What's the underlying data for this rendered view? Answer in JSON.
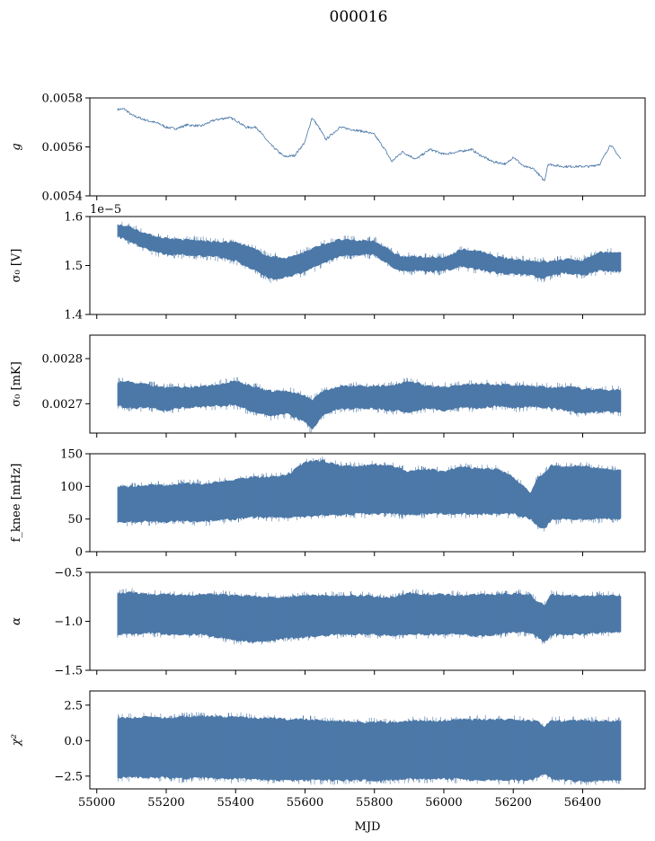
{
  "figure": {
    "title": "000016",
    "xlabel": "MJD",
    "x_ticks": [
      55000,
      55200,
      55400,
      55600,
      55800,
      56000,
      56200,
      56400
    ],
    "xlim": [
      54980,
      56580
    ],
    "series_color": "#4c78a8"
  },
  "chart_data": [
    {
      "type": "line",
      "ylabel": "g",
      "ylim": [
        0.0054,
        0.0058
      ],
      "y_ticks": [
        0.0054,
        0.0056,
        0.0058
      ],
      "y_tick_labels": [
        "0.0054",
        "0.0056",
        "0.0058"
      ],
      "offset_text": "",
      "style": "line",
      "x": [
        55060,
        55080,
        55100,
        55140,
        55180,
        55200,
        55230,
        55260,
        55300,
        55340,
        55380,
        55400,
        55430,
        55460,
        55500,
        55540,
        55570,
        55600,
        55620,
        55640,
        55660,
        55700,
        55740,
        55780,
        55800,
        55830,
        55850,
        55880,
        55920,
        55960,
        56000,
        56040,
        56080,
        56100,
        56140,
        56180,
        56200,
        56230,
        56260,
        56290,
        56300,
        56340,
        56380,
        56420,
        56450,
        56480,
        56510
      ],
      "y": [
        0.005753,
        0.005755,
        0.00573,
        0.00571,
        0.005695,
        0.00568,
        0.005675,
        0.00569,
        0.005685,
        0.00571,
        0.00572,
        0.00571,
        0.00568,
        0.00568,
        0.00561,
        0.00556,
        0.005565,
        0.00562,
        0.00572,
        0.00568,
        0.00563,
        0.00568,
        0.00567,
        0.00566,
        0.00565,
        0.00559,
        0.00554,
        0.00558,
        0.00555,
        0.00559,
        0.00557,
        0.00558,
        0.00559,
        0.00557,
        0.00554,
        0.00553,
        0.00556,
        0.00552,
        0.00551,
        0.00546,
        0.00553,
        0.00552,
        0.00552,
        0.00552,
        0.00553,
        0.00561,
        0.00555
      ]
    },
    {
      "type": "area",
      "ylabel": "σ₀ [V]",
      "ylim": [
        1.4,
        1.6
      ],
      "y_ticks": [
        1.4,
        1.5,
        1.6
      ],
      "y_tick_labels": [
        "1.4",
        "1.5",
        "1.6"
      ],
      "offset_text": "1e−5",
      "style": "band",
      "x": [
        55060,
        55100,
        55150,
        55200,
        55250,
        55300,
        55350,
        55400,
        55450,
        55500,
        55550,
        55600,
        55650,
        55700,
        55750,
        55800,
        55850,
        55880,
        55920,
        55960,
        56000,
        56050,
        56100,
        56150,
        56200,
        56250,
        56280,
        56300,
        56350,
        56400,
        56450,
        56510
      ],
      "lower": [
        1.562,
        1.55,
        1.535,
        1.525,
        1.525,
        1.522,
        1.52,
        1.512,
        1.495,
        1.475,
        1.48,
        1.49,
        1.507,
        1.522,
        1.525,
        1.525,
        1.5,
        1.492,
        1.492,
        1.49,
        1.492,
        1.5,
        1.495,
        1.488,
        1.485,
        1.483,
        1.475,
        1.48,
        1.488,
        1.483,
        1.492,
        1.49
      ],
      "upper": [
        1.582,
        1.575,
        1.56,
        1.553,
        1.55,
        1.548,
        1.545,
        1.545,
        1.532,
        1.515,
        1.513,
        1.525,
        1.54,
        1.55,
        1.548,
        1.548,
        1.525,
        1.515,
        1.515,
        1.514,
        1.513,
        1.53,
        1.527,
        1.515,
        1.51,
        1.507,
        1.505,
        1.505,
        1.51,
        1.508,
        1.525,
        1.522
      ]
    },
    {
      "type": "area",
      "ylabel": "σ₀ [mK]",
      "ylim": [
        0.002635,
        0.002852
      ],
      "y_ticks": [
        0.0027,
        0.0028
      ],
      "y_tick_labels": [
        "0.0027",
        "0.0028"
      ],
      "offset_text": "",
      "style": "band",
      "x": [
        55060,
        55100,
        55150,
        55200,
        55250,
        55300,
        55350,
        55400,
        55450,
        55500,
        55550,
        55600,
        55620,
        55650,
        55700,
        55750,
        55800,
        55850,
        55900,
        55950,
        56000,
        56050,
        56100,
        56150,
        56200,
        56250,
        56280,
        56300,
        56350,
        56400,
        56450,
        56510
      ],
      "lower": [
        0.002698,
        0.002693,
        0.002695,
        0.002688,
        0.002695,
        0.002696,
        0.002698,
        0.0027,
        0.002685,
        0.002675,
        0.00268,
        0.002662,
        0.002645,
        0.002678,
        0.002692,
        0.002693,
        0.002693,
        0.002688,
        0.002685,
        0.002693,
        0.002688,
        0.002695,
        0.002693,
        0.002698,
        0.002693,
        0.002696,
        0.002695,
        0.002695,
        0.002688,
        0.002682,
        0.002685,
        0.002685
      ],
      "upper": [
        0.002745,
        0.002745,
        0.002738,
        0.002733,
        0.002733,
        0.002735,
        0.00274,
        0.002748,
        0.002735,
        0.002725,
        0.002725,
        0.002715,
        0.002705,
        0.002725,
        0.002735,
        0.002737,
        0.002735,
        0.002738,
        0.002748,
        0.002737,
        0.002735,
        0.002738,
        0.002742,
        0.00274,
        0.002738,
        0.002736,
        0.002735,
        0.002733,
        0.002735,
        0.00273,
        0.002728,
        0.002728
      ]
    },
    {
      "type": "area",
      "ylabel": "f_knee [mHz]",
      "ylim": [
        0,
        150
      ],
      "y_ticks": [
        0,
        50,
        100,
        150
      ],
      "y_tick_labels": [
        "0",
        "50",
        "100",
        "150"
      ],
      "offset_text": "",
      "style": "band",
      "x": [
        55060,
        55100,
        55150,
        55200,
        55250,
        55300,
        55350,
        55400,
        55450,
        55500,
        55550,
        55600,
        55650,
        55700,
        55750,
        55800,
        55850,
        55900,
        55950,
        56000,
        56050,
        56100,
        56150,
        56200,
        56250,
        56270,
        56290,
        56310,
        56350,
        56400,
        56450,
        56510
      ],
      "lower": [
        48,
        48,
        48,
        48,
        50,
        48,
        50,
        52,
        55,
        55,
        55,
        55,
        58,
        58,
        60,
        60,
        60,
        58,
        60,
        60,
        60,
        60,
        60,
        60,
        52,
        42,
        38,
        50,
        52,
        52,
        52,
        52
      ],
      "upper": [
        98,
        98,
        100,
        100,
        102,
        102,
        105,
        108,
        112,
        112,
        115,
        135,
        138,
        130,
        128,
        132,
        130,
        120,
        125,
        120,
        128,
        125,
        125,
        112,
        88,
        110,
        118,
        130,
        128,
        130,
        125,
        122
      ]
    },
    {
      "type": "area",
      "ylabel": "α",
      "ylim": [
        -1.5,
        -0.5
      ],
      "y_ticks": [
        -1.5,
        -1.0,
        -0.5
      ],
      "y_tick_labels": [
        "−1.5",
        "−1.0",
        "−0.5"
      ],
      "offset_text": "",
      "style": "band",
      "x": [
        55060,
        55100,
        55150,
        55200,
        55250,
        55300,
        55350,
        55400,
        55450,
        55500,
        55550,
        55600,
        55650,
        55700,
        55750,
        55800,
        55850,
        55900,
        55950,
        56000,
        56050,
        56100,
        56150,
        56200,
        56250,
        56270,
        56290,
        56310,
        56350,
        56400,
        56450,
        56510
      ],
      "lower": [
        -1.12,
        -1.12,
        -1.1,
        -1.12,
        -1.12,
        -1.12,
        -1.15,
        -1.18,
        -1.2,
        -1.18,
        -1.16,
        -1.15,
        -1.13,
        -1.12,
        -1.12,
        -1.12,
        -1.13,
        -1.12,
        -1.12,
        -1.12,
        -1.12,
        -1.14,
        -1.12,
        -1.1,
        -1.1,
        -1.15,
        -1.2,
        -1.12,
        -1.12,
        -1.12,
        -1.1,
        -1.1
      ],
      "upper": [
        -0.73,
        -0.72,
        -0.74,
        -0.74,
        -0.75,
        -0.74,
        -0.74,
        -0.75,
        -0.76,
        -0.77,
        -0.77,
        -0.75,
        -0.75,
        -0.75,
        -0.75,
        -0.76,
        -0.77,
        -0.72,
        -0.74,
        -0.74,
        -0.75,
        -0.74,
        -0.74,
        -0.73,
        -0.74,
        -0.82,
        -0.85,
        -0.74,
        -0.75,
        -0.76,
        -0.75,
        -0.75
      ]
    },
    {
      "type": "area",
      "ylabel": "χ²",
      "ylim": [
        -3.4,
        3.5
      ],
      "y_ticks": [
        -2.5,
        0.0,
        2.5
      ],
      "y_tick_labels": [
        "−2.5",
        "0.0",
        "2.5"
      ],
      "offset_text": "",
      "style": "band",
      "x": [
        55060,
        55100,
        55150,
        55200,
        55250,
        55300,
        55350,
        55400,
        55450,
        55500,
        55550,
        55600,
        55650,
        55700,
        55750,
        55800,
        55850,
        55900,
        55950,
        56000,
        56050,
        56100,
        56150,
        56200,
        56250,
        56270,
        56290,
        56310,
        56350,
        56400,
        56450,
        56510
      ],
      "lower": [
        -2.5,
        -2.5,
        -2.5,
        -2.5,
        -2.6,
        -2.5,
        -2.6,
        -2.6,
        -2.6,
        -2.7,
        -2.7,
        -2.7,
        -2.7,
        -2.7,
        -2.7,
        -2.7,
        -2.7,
        -2.6,
        -2.6,
        -2.6,
        -2.6,
        -2.7,
        -2.7,
        -2.7,
        -2.7,
        -2.5,
        -2.2,
        -2.6,
        -2.7,
        -2.8,
        -2.7,
        -2.7
      ],
      "upper": [
        1.5,
        1.5,
        1.6,
        1.5,
        1.6,
        1.6,
        1.6,
        1.6,
        1.5,
        1.5,
        1.4,
        1.4,
        1.3,
        1.3,
        1.2,
        1.2,
        1.2,
        1.3,
        1.3,
        1.3,
        1.4,
        1.4,
        1.4,
        1.4,
        1.3,
        1.3,
        0.9,
        1.3,
        1.3,
        1.3,
        1.3,
        1.3
      ]
    }
  ]
}
